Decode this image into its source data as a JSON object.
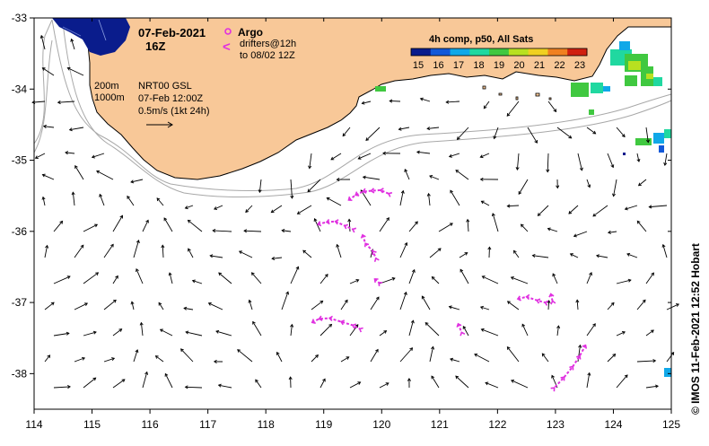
{
  "title": {
    "date": "07-Feb-2021",
    "hour": "16Z"
  },
  "legend": {
    "argo_label": "Argo",
    "drifters_line1": "drifters@12h",
    "drifters_line2": "to 08/02 12Z",
    "drifter_symbol": "<",
    "colorbar_title": "4h comp, p50, All Sats",
    "colorbar_ticks": [
      "15",
      "16",
      "17",
      "18",
      "19",
      "20",
      "21",
      "22",
      "23"
    ],
    "colorbar_colors": [
      "#0a1c8c",
      "#1258d8",
      "#10a8e8",
      "#20d8a0",
      "#40c840",
      "#b8e020",
      "#f0d020",
      "#f08020",
      "#d02010"
    ]
  },
  "annotations": {
    "depth_200": "200m",
    "depth_1000": "1000m",
    "product": "NRT00 GSL",
    "product_time": "07-Feb 12:00Z",
    "scale_vector": "0.5m/s (1kt 24h)"
  },
  "axes": {
    "longitudes": [
      "114",
      "115",
      "116",
      "117",
      "118",
      "119",
      "120",
      "121",
      "122",
      "123",
      "124",
      "125"
    ],
    "latitudes": [
      "-33",
      "-34",
      "-35",
      "-36",
      "-37",
      "-38"
    ],
    "lon_range": [
      114,
      125
    ],
    "lat_range": [
      -38.5,
      -33
    ]
  },
  "credit": "© IMOS 11-Feb-2021 12:52 Hobart",
  "colors": {
    "land": "#f8c898",
    "drifter": "#e030e0",
    "isobath": "#a8a8a8",
    "arrow": "#000000"
  },
  "drifter_tracks": [
    {
      "id": "d1",
      "points": [
        [
          119.43,
          -35.56
        ],
        [
          119.55,
          -35.49
        ],
        [
          119.68,
          -35.44
        ],
        [
          119.82,
          -35.43
        ],
        [
          119.98,
          -35.42
        ],
        [
          120.12,
          -35.47
        ]
      ]
    },
    {
      "id": "d2",
      "points": [
        [
          118.9,
          -35.9
        ],
        [
          119.05,
          -35.87
        ],
        [
          119.2,
          -35.86
        ],
        [
          119.36,
          -35.92
        ],
        [
          119.5,
          -35.97
        ]
      ]
    },
    {
      "id": "d3",
      "points": [
        [
          119.67,
          -36.05
        ],
        [
          119.72,
          -36.17
        ],
        [
          119.85,
          -36.28
        ],
        [
          119.9,
          -36.38
        ]
      ]
    },
    {
      "id": "d4",
      "points": [
        [
          119.88,
          -36.67
        ],
        [
          119.95,
          -36.72
        ]
      ]
    },
    {
      "id": "d5",
      "points": [
        [
          118.8,
          -37.28
        ],
        [
          118.92,
          -37.23
        ],
        [
          119.1,
          -37.22
        ],
        [
          119.3,
          -37.27
        ],
        [
          119.5,
          -37.32
        ],
        [
          119.62,
          -37.37
        ]
      ]
    },
    {
      "id": "d6",
      "points": [
        [
          121.32,
          -37.3
        ],
        [
          121.38,
          -37.42
        ]
      ]
    },
    {
      "id": "d7",
      "points": [
        [
          122.35,
          -36.95
        ],
        [
          122.5,
          -36.92
        ],
        [
          122.68,
          -36.97
        ],
        [
          122.82,
          -37.0
        ]
      ]
    },
    {
      "id": "d8",
      "points": [
        [
          122.92,
          -36.88
        ],
        [
          122.95,
          -36.98
        ]
      ]
    },
    {
      "id": "d9",
      "points": [
        [
          123.52,
          -37.6
        ],
        [
          123.42,
          -37.75
        ],
        [
          123.3,
          -37.9
        ],
        [
          123.15,
          -38.05
        ],
        [
          122.98,
          -38.2
        ]
      ]
    }
  ]
}
